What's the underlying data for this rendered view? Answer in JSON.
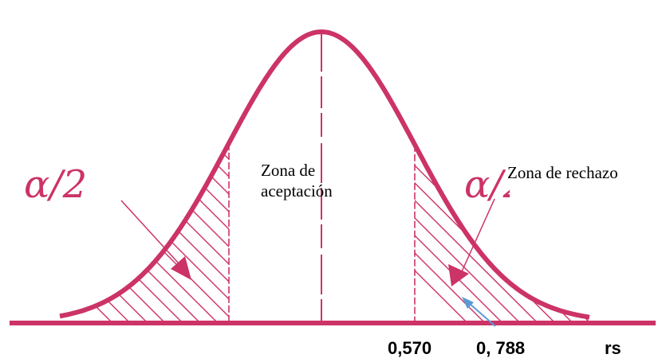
{
  "labels": {
    "acceptance_zone_line1": "Zona de",
    "acceptance_zone_line2": "aceptación",
    "rejection_zone": "Zona de rechazo",
    "alpha_left": "α/2",
    "alpha_right": "α/2"
  },
  "axis": {
    "critical_value_1": "0,570",
    "critical_value_2": "0, 788",
    "variable": "rs"
  },
  "colors": {
    "curve": "#cc3366",
    "hatch": "#cc3366",
    "arrow_annotation": "#5b9bd5",
    "text": "#000000"
  }
}
